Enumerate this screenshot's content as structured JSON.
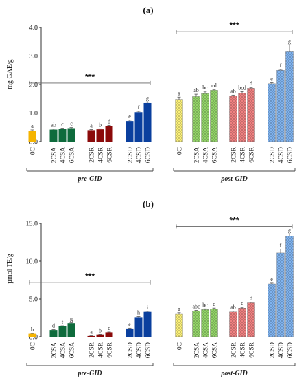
{
  "chart_data": [
    {
      "type": "bar",
      "panel_label": "(a)",
      "ylabel": "mg GAE/g",
      "ylim": [
        0,
        4.0
      ],
      "yticks": [
        "0.0",
        "1.0",
        "2.0",
        "3.0",
        "4.0"
      ],
      "yticks_values": [
        0,
        1,
        2,
        3,
        4
      ],
      "significance": [
        {
          "label": "***",
          "group": "pre-GID",
          "y": 2.05
        },
        {
          "label": "***",
          "group": "post-GID",
          "y": 3.85
        }
      ],
      "groups": [
        {
          "name": "pre-GID",
          "bars": [
            {
              "category": "0C",
              "value": 0.38,
              "error": 0.03,
              "letter": "a",
              "color": "#f5b400",
              "pattern": "solid"
            },
            {
              "category": "2CSA",
              "value": 0.42,
              "error": 0.02,
              "letter": "ab",
              "color": "#0e6b3c",
              "pattern": "solid"
            },
            {
              "category": "4CSA",
              "value": 0.45,
              "error": 0.02,
              "letter": "c",
              "color": "#0e6b3c",
              "pattern": "solid"
            },
            {
              "category": "6CSA",
              "value": 0.47,
              "error": 0.02,
              "letter": "c",
              "color": "#0e6b3c",
              "pattern": "solid"
            },
            {
              "category": "2CSR",
              "value": 0.4,
              "error": 0.02,
              "letter": "a",
              "color": "#8b0a0a",
              "pattern": "solid"
            },
            {
              "category": "4CSR",
              "value": 0.43,
              "error": 0.02,
              "letter": "b",
              "color": "#8b0a0a",
              "pattern": "solid"
            },
            {
              "category": "6CSR",
              "value": 0.55,
              "error": 0.02,
              "letter": "d",
              "color": "#8b0a0a",
              "pattern": "solid"
            },
            {
              "category": "2CSD",
              "value": 0.72,
              "error": 0.03,
              "letter": "e",
              "color": "#0a3f9e",
              "pattern": "solid"
            },
            {
              "category": "4CSD",
              "value": 1.03,
              "error": 0.03,
              "letter": "f",
              "color": "#0a3f9e",
              "pattern": "solid"
            },
            {
              "category": "6CSD",
              "value": 1.35,
              "error": 0.03,
              "letter": "g",
              "color": "#0a3f9e",
              "pattern": "solid"
            }
          ]
        },
        {
          "name": "post-GID",
          "bars": [
            {
              "category": "0C",
              "value": 1.48,
              "error": 0.08,
              "letter": "a",
              "color": "#fbf078",
              "pattern": "dots"
            },
            {
              "category": "2CSA",
              "value": 1.58,
              "error": 0.08,
              "letter": "ab",
              "color": "#93d468",
              "pattern": "dots"
            },
            {
              "category": "4CSA",
              "value": 1.68,
              "error": 0.08,
              "letter": "bc",
              "color": "#93d468",
              "pattern": "dots"
            },
            {
              "category": "6CSA",
              "value": 1.8,
              "error": 0.03,
              "letter": "cd",
              "color": "#93d468",
              "pattern": "dots"
            },
            {
              "category": "2CSR",
              "value": 1.6,
              "error": 0.03,
              "letter": "ab",
              "color": "#f08080",
              "pattern": "dots"
            },
            {
              "category": "4CSR",
              "value": 1.7,
              "error": 0.05,
              "letter": "bcd",
              "color": "#f08080",
              "pattern": "dots"
            },
            {
              "category": "6CSR",
              "value": 1.87,
              "error": 0.03,
              "letter": "d",
              "color": "#f08080",
              "pattern": "dots"
            },
            {
              "category": "2CSD",
              "value": 2.03,
              "error": 0.03,
              "letter": "e",
              "color": "#7fb3f0",
              "pattern": "dots"
            },
            {
              "category": "4CSD",
              "value": 2.5,
              "error": 0.03,
              "letter": "f",
              "color": "#7fb3f0",
              "pattern": "dots"
            },
            {
              "category": "6CSD",
              "value": 3.17,
              "error": 0.22,
              "letter": "g",
              "color": "#7fb3f0",
              "pattern": "dots"
            }
          ]
        }
      ]
    },
    {
      "type": "bar",
      "panel_label": "(b)",
      "ylabel": "µmol TE/g",
      "ylim": [
        0,
        15.0
      ],
      "yticks": [
        "0.0",
        "5.0",
        "10.0",
        "15.0"
      ],
      "yticks_values": [
        0,
        5,
        10,
        15
      ],
      "significance": [
        {
          "label": "***",
          "group": "pre-GID",
          "y": 7.2
        },
        {
          "label": "***",
          "group": "post-GID",
          "y": 14.6
        }
      ],
      "groups": [
        {
          "name": "pre-GID",
          "bars": [
            {
              "category": "0C",
              "value": 0.4,
              "error": 0.05,
              "letter": "b",
              "color": "#f5b400",
              "pattern": "solid"
            },
            {
              "category": "2CSA",
              "value": 0.9,
              "error": 0.05,
              "letter": "d",
              "color": "#0e6b3c",
              "pattern": "solid"
            },
            {
              "category": "4CSA",
              "value": 1.4,
              "error": 0.05,
              "letter": "f",
              "color": "#0e6b3c",
              "pattern": "solid"
            },
            {
              "category": "6CSA",
              "value": 1.8,
              "error": 0.05,
              "letter": "g",
              "color": "#0e6b3c",
              "pattern": "solid"
            },
            {
              "category": "2CSR",
              "value": 0.1,
              "error": 0.03,
              "letter": "a",
              "color": "#8b0a0a",
              "pattern": "solid"
            },
            {
              "category": "4CSR",
              "value": 0.3,
              "error": 0.03,
              "letter": "b",
              "color": "#8b0a0a",
              "pattern": "solid"
            },
            {
              "category": "6CSR",
              "value": 0.6,
              "error": 0.04,
              "letter": "c",
              "color": "#8b0a0a",
              "pattern": "solid"
            },
            {
              "category": "2CSD",
              "value": 1.1,
              "error": 0.05,
              "letter": "e",
              "color": "#0a3f9e",
              "pattern": "solid"
            },
            {
              "category": "4CSD",
              "value": 2.6,
              "error": 0.08,
              "letter": "h",
              "color": "#0a3f9e",
              "pattern": "solid"
            },
            {
              "category": "6CSD",
              "value": 3.3,
              "error": 0.08,
              "letter": "i",
              "color": "#0a3f9e",
              "pattern": "solid"
            }
          ]
        },
        {
          "name": "post-GID",
          "bars": [
            {
              "category": "0C",
              "value": 3.0,
              "error": 0.2,
              "letter": "a",
              "color": "#fbf078",
              "pattern": "dots"
            },
            {
              "category": "2CSA",
              "value": 3.4,
              "error": 0.1,
              "letter": "abc",
              "color": "#93d468",
              "pattern": "dots"
            },
            {
              "category": "4CSA",
              "value": 3.6,
              "error": 0.1,
              "letter": "bc",
              "color": "#93d468",
              "pattern": "dots"
            },
            {
              "category": "6CSA",
              "value": 3.7,
              "error": 0.1,
              "letter": "c",
              "color": "#93d468",
              "pattern": "dots"
            },
            {
              "category": "2CSR",
              "value": 3.3,
              "error": 0.1,
              "letter": "ab",
              "color": "#f08080",
              "pattern": "dots"
            },
            {
              "category": "4CSR",
              "value": 3.8,
              "error": 0.1,
              "letter": "c",
              "color": "#f08080",
              "pattern": "dots"
            },
            {
              "category": "6CSR",
              "value": 4.5,
              "error": 0.1,
              "letter": "d",
              "color": "#f08080",
              "pattern": "dots"
            },
            {
              "category": "2CSD",
              "value": 7.0,
              "error": 0.1,
              "letter": "e",
              "color": "#7fb3f0",
              "pattern": "dots"
            },
            {
              "category": "4CSD",
              "value": 11.1,
              "error": 0.5,
              "letter": "f",
              "color": "#7fb3f0",
              "pattern": "dots"
            },
            {
              "category": "6CSD",
              "value": 13.3,
              "error": 0.3,
              "letter": "g",
              "color": "#7fb3f0",
              "pattern": "dots"
            }
          ]
        }
      ]
    }
  ]
}
